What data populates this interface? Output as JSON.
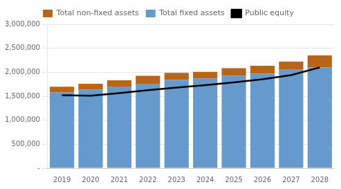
{
  "chart_data": {
    "type": "bar",
    "stacked": true,
    "grid": true,
    "legend": "top",
    "categories": [
      "2019",
      "2020",
      "2021",
      "2022",
      "2023",
      "2024",
      "2025",
      "2026",
      "2027",
      "2028"
    ],
    "series": [
      {
        "name": "Total fixed assets",
        "color": "#6699CC",
        "values": [
          1580000,
          1640000,
          1690000,
          1750000,
          1840000,
          1870000,
          1930000,
          1970000,
          2050000,
          2100000
        ]
      },
      {
        "name": "Total non-fixed assets",
        "color": "#B8651A",
        "values": [
          120000,
          120000,
          140000,
          175000,
          145000,
          140000,
          155000,
          165000,
          170000,
          250000
        ]
      },
      {
        "name": "Public equity",
        "type": "line",
        "color": "#000000",
        "values": [
          1520000,
          1510000,
          1565000,
          1625000,
          1680000,
          1730000,
          1790000,
          1855000,
          1940000,
          2100000
        ]
      }
    ],
    "ylim": [
      0,
      3000000
    ],
    "yticks": [
      {
        "value": 0,
        "label": "-"
      },
      {
        "value": 500000,
        "label": "500,000"
      },
      {
        "value": 1000000,
        "label": "1,000,000"
      },
      {
        "value": 1500000,
        "label": "1,500,000"
      },
      {
        "value": 2000000,
        "label": "2,000,000"
      },
      {
        "value": 2500000,
        "label": "2,500,000"
      },
      {
        "value": 3000000,
        "label": "3,000,000"
      }
    ]
  }
}
